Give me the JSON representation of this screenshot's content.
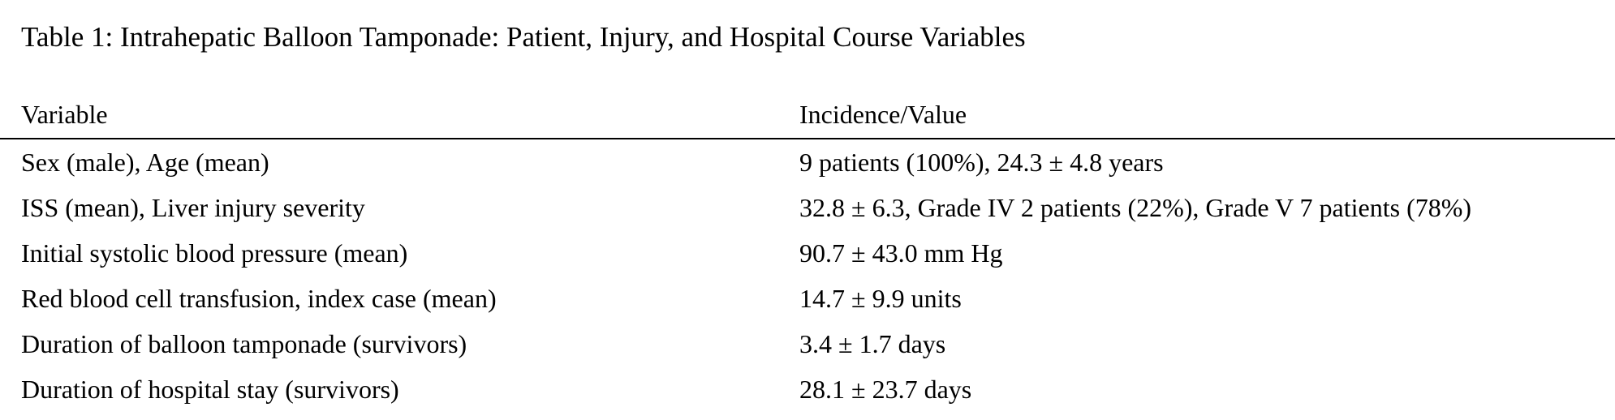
{
  "caption": "Table 1: Intrahepatic Balloon Tamponade: Patient, Injury, and Hospital Course Variables",
  "table": {
    "headers": [
      "Variable",
      "Incidence/Value"
    ],
    "rows": [
      [
        "Sex (male), Age (mean)",
        "9 patients (100%), 24.3 ± 4.8 years"
      ],
      [
        "ISS (mean), Liver injury severity",
        "32.8 ± 6.3, Grade IV 2 patients (22%), Grade V 7 patients (78%)"
      ],
      [
        "Initial systolic blood pressure (mean)",
        "90.7 ± 43.0 mm Hg"
      ],
      [
        "Red blood cell transfusion, index case (mean)",
        "14.7 ± 9.9 units"
      ],
      [
        "Duration of balloon tamponade (survivors)",
        "3.4 ± 1.7 days"
      ],
      [
        "Duration of hospital stay (survivors)",
        "28.1 ± 23.7 days"
      ]
    ]
  }
}
